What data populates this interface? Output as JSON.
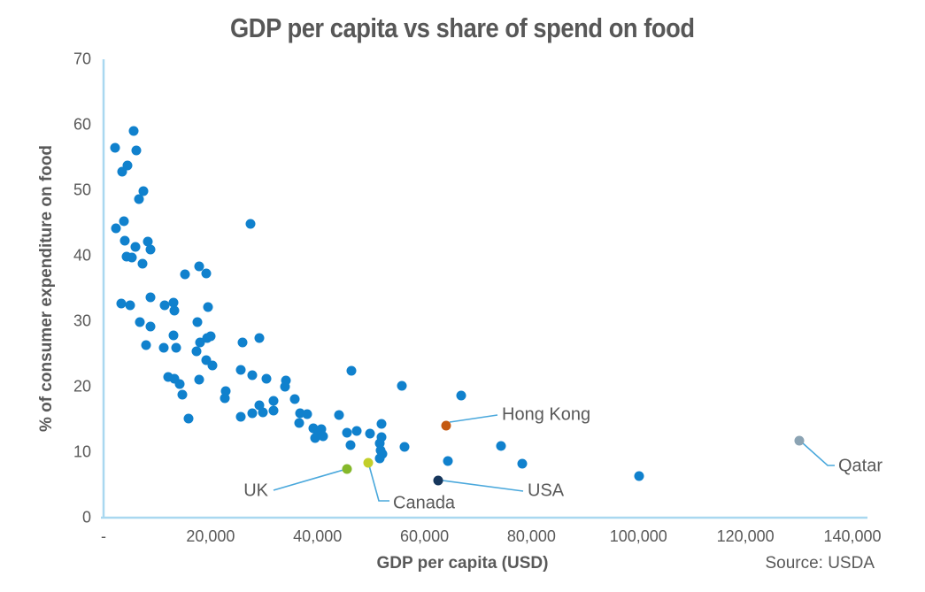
{
  "chart_data": {
    "type": "scatter",
    "title": "GDP per capita vs share of spend on food",
    "xlabel": "GDP per capita (USD)",
    "ylabel": "% of consumer expenditure on food",
    "source": "Source: USDA",
    "xlim": [
      0,
      140000
    ],
    "ylim": [
      0,
      70
    ],
    "grid": false,
    "legend": false,
    "x_ticks": [
      {
        "value": 0,
        "label": "-"
      },
      {
        "value": 20000,
        "label": "20,000"
      },
      {
        "value": 40000,
        "label": "40,000"
      },
      {
        "value": 60000,
        "label": "60,000"
      },
      {
        "value": 80000,
        "label": "80,000"
      },
      {
        "value": 100000,
        "label": "100,000"
      },
      {
        "value": 120000,
        "label": "120,000"
      },
      {
        "value": 140000,
        "label": "140,000"
      }
    ],
    "y_ticks": [
      {
        "value": 0,
        "label": "0"
      },
      {
        "value": 10,
        "label": "10"
      },
      {
        "value": 20,
        "label": "20"
      },
      {
        "value": 30,
        "label": "30"
      },
      {
        "value": 40,
        "label": "40"
      },
      {
        "value": 50,
        "label": "50"
      },
      {
        "value": 60,
        "label": "60"
      },
      {
        "value": 70,
        "label": "70"
      }
    ],
    "series": [
      {
        "name": "Countries",
        "color": "#1081cd",
        "points": [
          [
            2100,
            56.5
          ],
          [
            5600,
            59.0
          ],
          [
            6100,
            56.1
          ],
          [
            4500,
            53.8
          ],
          [
            3400,
            52.8
          ],
          [
            7500,
            49.8
          ],
          [
            6600,
            48.7
          ],
          [
            3800,
            45.3
          ],
          [
            2300,
            44.2
          ],
          [
            27500,
            44.8
          ],
          [
            4000,
            42.3
          ],
          [
            6000,
            41.3
          ],
          [
            8300,
            42.1
          ],
          [
            8800,
            41.0
          ],
          [
            4300,
            39.9
          ],
          [
            5300,
            39.7
          ],
          [
            7200,
            38.8
          ],
          [
            17900,
            38.4
          ],
          [
            15300,
            37.2
          ],
          [
            19200,
            37.3
          ],
          [
            3300,
            32.7
          ],
          [
            5000,
            32.5
          ],
          [
            8700,
            33.6
          ],
          [
            11400,
            32.4
          ],
          [
            13100,
            32.8
          ],
          [
            13200,
            31.6
          ],
          [
            19500,
            32.1
          ],
          [
            17500,
            29.9
          ],
          [
            6800,
            29.9
          ],
          [
            8800,
            29.2
          ],
          [
            13100,
            27.8
          ],
          [
            18000,
            26.7
          ],
          [
            19300,
            27.4
          ],
          [
            20100,
            27.7
          ],
          [
            7900,
            26.3
          ],
          [
            11300,
            25.9
          ],
          [
            13600,
            26.0
          ],
          [
            17300,
            25.4
          ],
          [
            26000,
            26.8
          ],
          [
            29100,
            27.5
          ],
          [
            19200,
            24.1
          ],
          [
            20400,
            23.2
          ],
          [
            25700,
            22.6
          ],
          [
            27800,
            21.8
          ],
          [
            46300,
            22.4
          ],
          [
            12100,
            21.5
          ],
          [
            13300,
            21.2
          ],
          [
            14200,
            20.4
          ],
          [
            14700,
            18.8
          ],
          [
            17900,
            21.1
          ],
          [
            30400,
            21.2
          ],
          [
            34100,
            20.9
          ],
          [
            55800,
            20.2
          ],
          [
            31800,
            17.8
          ],
          [
            33900,
            20.0
          ],
          [
            35700,
            18.1
          ],
          [
            22800,
            19.3
          ],
          [
            22700,
            18.3
          ],
          [
            29200,
            17.1
          ],
          [
            29800,
            16.1
          ],
          [
            31800,
            16.4
          ],
          [
            66900,
            18.7
          ],
          [
            25600,
            15.4
          ],
          [
            27800,
            16.0
          ],
          [
            15900,
            15.1
          ],
          [
            36800,
            16.0
          ],
          [
            38000,
            15.8
          ],
          [
            44100,
            15.7
          ],
          [
            36500,
            14.4
          ],
          [
            39300,
            13.7
          ],
          [
            40700,
            13.5
          ],
          [
            40100,
            12.8
          ],
          [
            39600,
            12.2
          ],
          [
            41100,
            12.4
          ],
          [
            45500,
            13.0
          ],
          [
            47300,
            13.3
          ],
          [
            49800,
            12.8
          ],
          [
            51900,
            12.3
          ],
          [
            52000,
            14.3
          ],
          [
            51600,
            11.4
          ],
          [
            51800,
            10.3
          ],
          [
            52200,
            9.7
          ],
          [
            51700,
            9.0
          ],
          [
            46100,
            11.1
          ],
          [
            56300,
            10.8
          ],
          [
            74300,
            11.0
          ],
          [
            64400,
            8.6
          ],
          [
            78300,
            8.3
          ],
          [
            100200,
            6.4
          ]
        ]
      }
    ],
    "annotated_points": [
      {
        "label": "UK",
        "x": 45500,
        "y": 7.5,
        "color": "#85b82a"
      },
      {
        "label": "Canada",
        "x": 49500,
        "y": 8.4,
        "color": "#c2cf2a"
      },
      {
        "label": "USA",
        "x": 62500,
        "y": 5.7,
        "color": "#16365c"
      },
      {
        "label": "Hong Kong",
        "x": 64000,
        "y": 14.1,
        "color": "#c45911"
      },
      {
        "label": "Qatar",
        "x": 130100,
        "y": 11.8,
        "color": "#8ba3b3"
      }
    ],
    "style_colors": {
      "point_blue": "#1081cd",
      "axis_line": "#a9d8f0",
      "leader_line": "#4aa8dc",
      "text_gray": "#595959"
    }
  }
}
